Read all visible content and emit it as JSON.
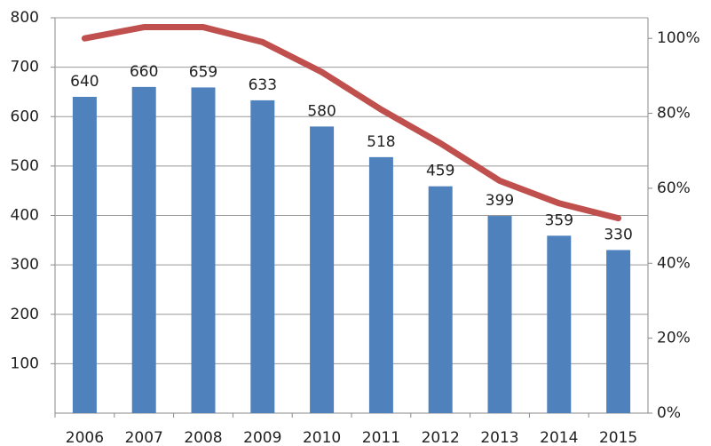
{
  "chart_data": {
    "type": "bar",
    "categories": [
      "2006",
      "2007",
      "2008",
      "2009",
      "2010",
      "2011",
      "2012",
      "2013",
      "2014",
      "2015"
    ],
    "values": [
      640,
      660,
      659,
      633,
      580,
      518,
      459,
      399,
      359,
      330
    ],
    "color": "#4f81bd",
    "ylim": [
      0,
      800
    ],
    "yticks": [
      100,
      200,
      300,
      400,
      500,
      600,
      700,
      800
    ],
    "grid": true,
    "line": {
      "type": "line",
      "axis": "y2",
      "color": "#c0504d",
      "values": [
        100,
        103,
        103,
        99,
        91,
        81,
        72,
        62,
        56,
        52
      ]
    },
    "y2lim": [
      0,
      105.5
    ],
    "y2ticks": [
      {
        "value": 0,
        "label": "0%"
      },
      {
        "value": 20,
        "label": "20%"
      },
      {
        "value": 40,
        "label": "40%"
      },
      {
        "value": 60,
        "label": "60%"
      },
      {
        "value": 80,
        "label": "80%"
      },
      {
        "value": 100,
        "label": "100%"
      }
    ]
  }
}
